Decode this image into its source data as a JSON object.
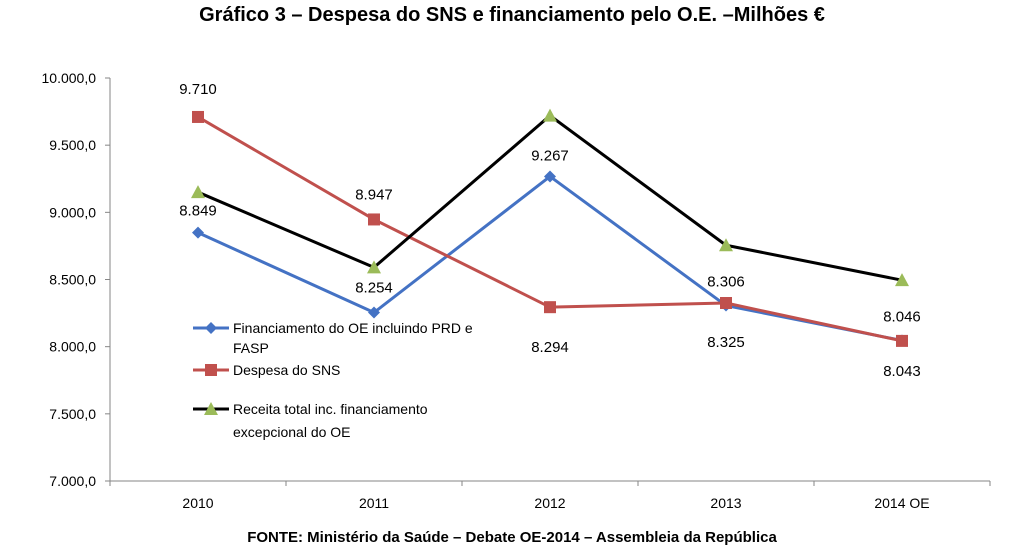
{
  "title": "Gráfico 3 – Despesa do SNS e financiamento pelo O.E. –Milhões €",
  "source": "FONTE: Ministério da Saúde – Debate OE-2014 – Assembleia da República",
  "chart_data": {
    "type": "line",
    "categories": [
      "2010",
      "2011",
      "2012",
      "2013",
      "2014 OE"
    ],
    "ylim": [
      7000,
      10000
    ],
    "y_ticks": [
      "7.000,0",
      "7.500,0",
      "8.000,0",
      "8.500,0",
      "9.000,0",
      "9.500,0",
      "10.000,0"
    ],
    "grid": false,
    "legend_position": "inside-bottom-left",
    "series": [
      {
        "name_lines": [
          "Financiamento do OE incluindo PRD e",
          "FASP"
        ],
        "color": "#4472c4",
        "marker": "diamond",
        "values": [
          8849,
          8254,
          9267,
          8306,
          8046
        ],
        "labels": [
          "8.849",
          "8.254",
          "9.267",
          "8.306",
          "8.046"
        ]
      },
      {
        "name_lines": [
          "Despesa do SNS"
        ],
        "color": "#c0504d",
        "marker": "square",
        "values": [
          9710,
          8947,
          8294,
          8325,
          8043
        ],
        "labels": [
          "9.710",
          "8.947",
          "8.294",
          "8.325",
          "8.043"
        ]
      },
      {
        "name_lines": [
          "Receita total inc. financiamento",
          "excepcional do OE"
        ],
        "color": "#000000",
        "marker_color": "#9bbb59",
        "marker": "triangle",
        "values": [
          9150,
          8590,
          9720,
          8755,
          8495
        ]
      }
    ]
  }
}
